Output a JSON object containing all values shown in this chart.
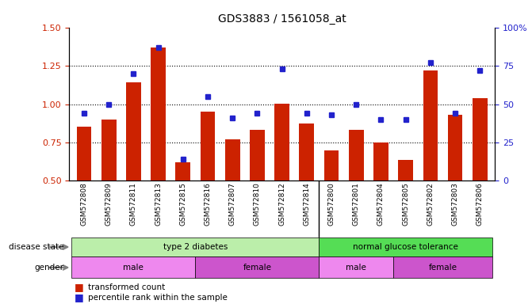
{
  "title": "GDS3883 / 1561058_at",
  "samples": [
    "GSM572808",
    "GSM572809",
    "GSM572811",
    "GSM572813",
    "GSM572815",
    "GSM572816",
    "GSM572807",
    "GSM572810",
    "GSM572812",
    "GSM572814",
    "GSM572800",
    "GSM572801",
    "GSM572804",
    "GSM572805",
    "GSM572802",
    "GSM572803",
    "GSM572806"
  ],
  "bar_values": [
    0.855,
    0.9,
    1.14,
    1.37,
    0.62,
    0.95,
    0.77,
    0.835,
    1.005,
    0.875,
    0.7,
    0.835,
    0.75,
    0.635,
    1.22,
    0.93,
    1.04
  ],
  "dot_values_pct": [
    44,
    50,
    70,
    87,
    14,
    55,
    41,
    44,
    73,
    44,
    43,
    50,
    40,
    40,
    77,
    44,
    72
  ],
  "bar_color": "#CC2200",
  "dot_color": "#2222CC",
  "ylim_left": [
    0.5,
    1.5
  ],
  "ylim_right": [
    0,
    100
  ],
  "yticks_left": [
    0.5,
    0.75,
    1.0,
    1.25,
    1.5
  ],
  "yticks_right": [
    0,
    25,
    50,
    75,
    100
  ],
  "disease_groups": [
    {
      "label": "type 2 diabetes",
      "start": 0,
      "end": 10,
      "color": "#BBEEAA"
    },
    {
      "label": "normal glucose tolerance",
      "start": 10,
      "end": 17,
      "color": "#55DD55"
    }
  ],
  "gender_groups": [
    {
      "label": "male",
      "start": 0,
      "end": 5,
      "color": "#EE88EE"
    },
    {
      "label": "female",
      "start": 5,
      "end": 10,
      "color": "#CC55CC"
    },
    {
      "label": "male",
      "start": 10,
      "end": 13,
      "color": "#EE88EE"
    },
    {
      "label": "female",
      "start": 13,
      "end": 17,
      "color": "#CC55CC"
    }
  ],
  "xticklabel_bg": "#DDDDDD",
  "background_color": "#FFFFFF"
}
